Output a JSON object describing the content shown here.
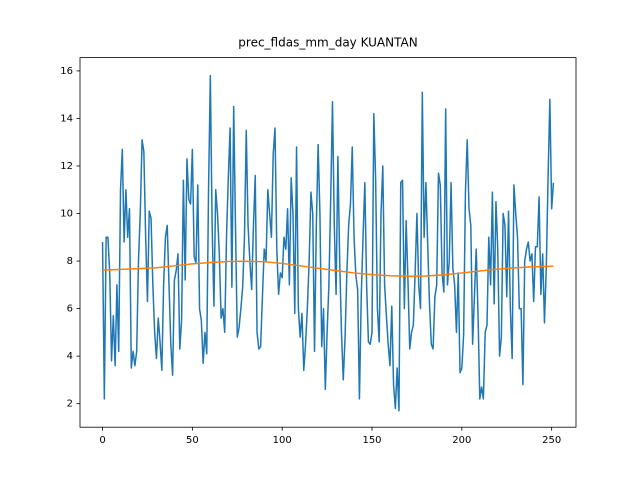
{
  "chart_data": {
    "type": "line",
    "title": "prec_fldas_mm_day KUANTAN",
    "xlim": [
      -12.55,
      263.55
    ],
    "ylim": [
      1.01,
      16.56
    ],
    "xticks": [
      0,
      50,
      100,
      150,
      200,
      250
    ],
    "yticks": [
      2,
      4,
      6,
      8,
      10,
      12,
      14,
      16
    ],
    "series": [
      {
        "color": "#1f77b4",
        "x": [
          0,
          1,
          2,
          3,
          4,
          5,
          6,
          7,
          8,
          9,
          10,
          11,
          12,
          13,
          14,
          15,
          16,
          17,
          18,
          19,
          20,
          21,
          22,
          23,
          24,
          25,
          26,
          27,
          28,
          29,
          30,
          31,
          32,
          33,
          34,
          35,
          36,
          37,
          38,
          39,
          40,
          41,
          42,
          43,
          44,
          45,
          46,
          47,
          48,
          49,
          50,
          51,
          52,
          53,
          54,
          55,
          56,
          57,
          58,
          59,
          60,
          61,
          62,
          63,
          64,
          65,
          66,
          67,
          68,
          69,
          70,
          71,
          72,
          73,
          74,
          75,
          76,
          77,
          78,
          79,
          80,
          81,
          82,
          83,
          84,
          85,
          86,
          87,
          88,
          89,
          90,
          91,
          92,
          93,
          94,
          95,
          96,
          97,
          98,
          99,
          100,
          101,
          102,
          103,
          104,
          105,
          106,
          107,
          108,
          109,
          110,
          111,
          112,
          113,
          114,
          115,
          116,
          117,
          118,
          119,
          120,
          121,
          122,
          123,
          124,
          125,
          126,
          127,
          128,
          129,
          130,
          131,
          132,
          133,
          134,
          135,
          136,
          137,
          138,
          139,
          140,
          141,
          142,
          143,
          144,
          145,
          146,
          147,
          148,
          149,
          150,
          151,
          152,
          153,
          154,
          155,
          156,
          157,
          158,
          159,
          160,
          161,
          162,
          163,
          164,
          165,
          166,
          167,
          168,
          169,
          170,
          171,
          172,
          173,
          174,
          175,
          176,
          177,
          178,
          179,
          180,
          181,
          182,
          183,
          184,
          185,
          186,
          187,
          188,
          189,
          190,
          191,
          192,
          193,
          194,
          195,
          196,
          197,
          198,
          199,
          200,
          201,
          202,
          203,
          204,
          205,
          206,
          207,
          208,
          209,
          210,
          211,
          212,
          213,
          214,
          215,
          216,
          217,
          218,
          219,
          220,
          221,
          222,
          223,
          224,
          225,
          226,
          227,
          228,
          229,
          230,
          231,
          232,
          233,
          234,
          235,
          236,
          237,
          238,
          239,
          240,
          241,
          242,
          243,
          244,
          245,
          246,
          247,
          248,
          249,
          250,
          251
        ],
        "values": [
          8.8,
          2.2,
          9.0,
          9.0,
          7.5,
          3.8,
          5.7,
          3.6,
          7.0,
          4.2,
          11.0,
          12.7,
          8.8,
          11.0,
          9.0,
          10.2,
          3.5,
          4.2,
          3.6,
          4.2,
          8.0,
          10.0,
          13.1,
          12.6,
          9.0,
          6.3,
          10.1,
          9.8,
          7.0,
          5.0,
          3.9,
          5.6,
          4.6,
          3.4,
          7.0,
          9.0,
          9.5,
          7.0,
          4.5,
          3.2,
          7.2,
          7.6,
          8.3,
          4.3,
          5.5,
          11.4,
          7.2,
          12.3,
          10.6,
          10.4,
          12.7,
          8.2,
          7.9,
          11.2,
          6.0,
          5.5,
          3.7,
          5.0,
          4.1,
          11.0,
          15.8,
          9.5,
          6.1,
          11.0,
          10.0,
          8.3,
          5.6,
          6.0,
          5.0,
          9.0,
          11.5,
          13.6,
          6.9,
          14.5,
          9.5,
          4.8,
          5.2,
          6.0,
          6.9,
          9.0,
          13.5,
          9.5,
          8.0,
          6.8,
          9.5,
          11.6,
          5.0,
          4.3,
          4.4,
          6.5,
          8.5,
          8.0,
          11.0,
          10.0,
          9.0,
          12.5,
          13.6,
          8.5,
          6.6,
          7.5,
          7.3,
          9.0,
          8.5,
          10.2,
          7.0,
          11.5,
          10.0,
          5.8,
          12.8,
          6.0,
          4.8,
          5.8,
          3.4,
          4.5,
          6.0,
          8.0,
          10.9,
          10.0,
          4.2,
          9.5,
          12.9,
          10.0,
          4.4,
          6.0,
          2.6,
          5.0,
          7.0,
          10.6,
          14.7,
          9.5,
          6.6,
          12.4,
          8.0,
          5.0,
          3.0,
          4.8,
          7.5,
          9.5,
          10.4,
          12.8,
          9.0,
          7.4,
          6.8,
          2.2,
          6.5,
          9.0,
          11.3,
          7.0,
          4.6,
          4.5,
          5.0,
          14.2,
          11.5,
          6.0,
          4.6,
          10.0,
          12.0,
          7.0,
          5.7,
          4.5,
          3.6,
          6.1,
          2.8,
          1.8,
          3.5,
          1.7,
          11.3,
          11.4,
          6.0,
          9.7,
          7.2,
          4.3,
          5.0,
          5.3,
          7.5,
          10.0,
          7.0,
          6.0,
          15.1,
          9.0,
          11.3,
          8.7,
          6.2,
          4.5,
          4.3,
          6.5,
          7.0,
          11.7,
          11.2,
          7.5,
          6.7,
          14.4,
          7.0,
          8.0,
          11.3,
          7.7,
          7.0,
          5.0,
          7.5,
          3.3,
          3.5,
          4.9,
          10.9,
          13.1,
          10.2,
          9.5,
          4.5,
          6.5,
          8.5,
          5.8,
          2.2,
          2.7,
          2.2,
          5.0,
          5.3,
          9.0,
          7.0,
          10.9,
          6.2,
          10.5,
          8.5,
          4.0,
          4.8,
          10.0,
          9.5,
          6.5,
          10.1,
          6.0,
          3.9,
          11.2,
          10.0,
          9.0,
          6.0,
          6.0,
          2.8,
          8.0,
          8.5,
          8.8,
          8.0,
          8.3,
          6.3,
          8.6,
          8.6,
          10.7,
          6.6,
          8.3,
          5.4,
          7.7,
          11.5,
          14.8,
          10.2,
          11.3
        ]
      },
      {
        "color": "#ff7f0e",
        "x": [
          0,
          10,
          20,
          30,
          40,
          50,
          60,
          70,
          80,
          90,
          100,
          110,
          120,
          130,
          140,
          150,
          160,
          170,
          180,
          190,
          200,
          210,
          220,
          230,
          240,
          250,
          251
        ],
        "values": [
          7.62,
          7.65,
          7.68,
          7.72,
          7.8,
          7.88,
          7.94,
          7.98,
          7.99,
          7.97,
          7.9,
          7.8,
          7.7,
          7.6,
          7.5,
          7.43,
          7.38,
          7.36,
          7.37,
          7.42,
          7.5,
          7.58,
          7.66,
          7.72,
          7.76,
          7.78,
          7.78
        ]
      }
    ]
  }
}
